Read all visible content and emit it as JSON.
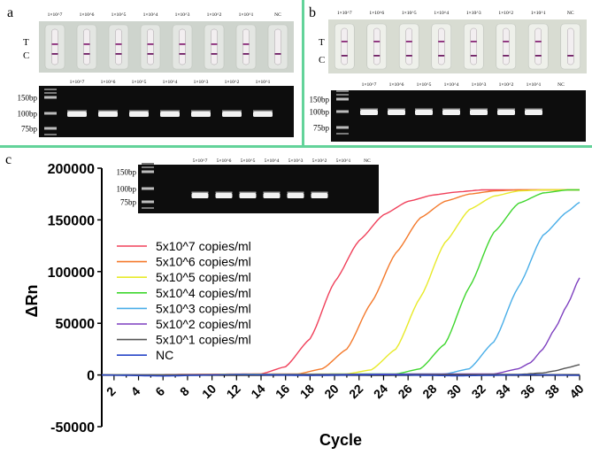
{
  "figure": {
    "divider_color": "#63d39a",
    "panel_a": {
      "letter": "a",
      "strip_labels": [
        "1×10^7",
        "1×10^6",
        "1×10^5",
        "1×10^4",
        "1×10^3",
        "1×10^2",
        "1×10^1",
        "NC"
      ],
      "strip_lines": [
        [
          "T",
          "C"
        ],
        [
          "T",
          "C"
        ],
        [
          "T",
          "C"
        ],
        [
          "T",
          "C"
        ],
        [
          "T",
          "C"
        ],
        [
          "T",
          "C"
        ],
        [
          "T",
          "C"
        ],
        [
          "C"
        ]
      ],
      "t_label": "T",
      "c_label": "C",
      "gel_lane_labels": [
        "1×10^7",
        "1×10^6",
        "1×10^5",
        "1×10^4",
        "1×10^3",
        "1×10^2",
        "1×10^1"
      ],
      "gel_lane_bands": [
        1,
        1,
        1,
        1,
        1,
        1,
        1
      ],
      "gel_markers": [
        "150bp",
        "100bp",
        "75bp"
      ]
    },
    "panel_b": {
      "letter": "b",
      "strip_labels": [
        "1×10^7",
        "1×10^6",
        "1×10^5",
        "1×10^4",
        "1×10^3",
        "1×10^2",
        "1×10^1",
        "NC"
      ],
      "strip_lines": [
        [
          "T",
          "C"
        ],
        [
          "T",
          "C"
        ],
        [
          "T",
          "C"
        ],
        [
          "T",
          "C"
        ],
        [
          "T",
          "C"
        ],
        [
          "T",
          "C"
        ],
        [
          "T",
          "C"
        ],
        [
          "C"
        ]
      ],
      "t_label": "T",
      "c_label": "C",
      "gel_lane_labels": [
        "1×10^7",
        "1×10^6",
        "1×10^5",
        "1×10^4",
        "1×10^3",
        "1×10^2",
        "1×10^1",
        "NC"
      ],
      "gel_lane_bands": [
        1,
        1,
        1,
        1,
        1,
        1,
        1,
        0
      ],
      "gel_markers": [
        "150bp",
        "100bp",
        "75bp"
      ]
    },
    "panel_c": {
      "letter": "c",
      "gel_lane_labels": [
        "5×10^7",
        "5×10^6",
        "5×10^5",
        "5×10^4",
        "5×10^3",
        "5×10^2",
        "5×10^1",
        "NC"
      ],
      "gel_lane_bands": [
        1,
        1,
        1,
        1,
        1,
        1,
        0,
        0
      ],
      "gel_markers": [
        "150bp",
        "100bp",
        "75bp"
      ]
    }
  },
  "chart_data": {
    "type": "line",
    "title": "",
    "xlabel": "Cycle",
    "ylabel": "ΔRn",
    "xlim": [
      1,
      40
    ],
    "ylim": [
      -50000,
      200000
    ],
    "x_ticks": [
      2,
      4,
      6,
      8,
      10,
      12,
      14,
      16,
      18,
      20,
      22,
      24,
      26,
      28,
      30,
      32,
      34,
      36,
      38,
      40
    ],
    "y_ticks": [
      -50000,
      0,
      50000,
      100000,
      150000,
      200000
    ],
    "legend_position": "center-left",
    "series": [
      {
        "name": "5x10^7 copies/ml",
        "color": "#f0405a",
        "x": [
          1,
          14,
          16,
          18,
          20,
          22,
          24,
          26,
          28,
          30,
          32,
          34,
          36,
          38,
          40
        ],
        "y": [
          0,
          1000,
          8000,
          35000,
          90000,
          130000,
          155000,
          168000,
          174000,
          177000,
          179000,
          179000,
          179000,
          179000,
          179000
        ]
      },
      {
        "name": "5x10^6 copies/ml",
        "color": "#f47a2c",
        "x": [
          1,
          17,
          19,
          21,
          23,
          25,
          27,
          29,
          31,
          33,
          35,
          37,
          40
        ],
        "y": [
          0,
          1000,
          6000,
          25000,
          70000,
          118000,
          152000,
          168000,
          175000,
          178000,
          179000,
          179000,
          179000
        ]
      },
      {
        "name": "5x10^5 copies/ml",
        "color": "#e8ea2a",
        "x": [
          1,
          21,
          23,
          25,
          27,
          29,
          31,
          33,
          35,
          37,
          40
        ],
        "y": [
          0,
          1000,
          5000,
          25000,
          75000,
          128000,
          160000,
          173000,
          178000,
          179000,
          179000
        ]
      },
      {
        "name": "5x10^4 copies/ml",
        "color": "#3fd62e",
        "x": [
          1,
          25,
          27,
          29,
          31,
          33,
          35,
          37,
          39,
          40
        ],
        "y": [
          0,
          1000,
          6000,
          30000,
          85000,
          138000,
          166000,
          176000,
          179000,
          179000
        ]
      },
      {
        "name": "5x10^3 copies/ml",
        "color": "#49aee8",
        "x": [
          1,
          29,
          31,
          33,
          35,
          37,
          39,
          40
        ],
        "y": [
          0,
          1000,
          6000,
          32000,
          85000,
          135000,
          158000,
          167000
        ]
      },
      {
        "name": "5x10^2 copies/ml",
        "color": "#7d3fbf",
        "x": [
          1,
          33,
          35,
          36,
          37,
          38,
          39,
          40
        ],
        "y": [
          0,
          1000,
          6000,
          12000,
          25000,
          45000,
          68000,
          94000
        ]
      },
      {
        "name": "5x10^1 copies/ml",
        "color": "#555555",
        "x": [
          1,
          35,
          37,
          38,
          39,
          40
        ],
        "y": [
          0,
          500,
          2000,
          4000,
          7000,
          10000
        ]
      },
      {
        "name": "NC",
        "color": "#2746c8",
        "x": [
          1,
          6,
          12,
          18,
          24,
          30,
          36,
          40
        ],
        "y": [
          0,
          -1000,
          500,
          -500,
          300,
          -800,
          200,
          -300
        ]
      }
    ]
  }
}
